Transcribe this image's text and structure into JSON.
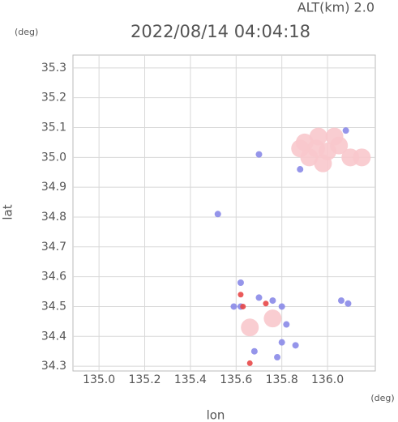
{
  "chart_data": {
    "type": "scatter",
    "title": "2022/08/14 04:04:18",
    "subtitle": "ALT(km) 2.0",
    "y_unit": "(deg)",
    "x_unit": "(deg)",
    "x_label": "lon",
    "y_label": "lat",
    "xlim": [
      134.886,
      136.209
    ],
    "ylim": [
      34.284,
      35.343
    ],
    "xticks": [
      {
        "value": 135.0,
        "label": "135.0"
      },
      135.2,
      135.4,
      135.6,
      135.8,
      {
        "value": 136.0,
        "label": "136.0"
      }
    ],
    "yticks": [
      34.3,
      34.4,
      34.5,
      34.6,
      34.7,
      34.8,
      34.9,
      {
        "value": 35.0,
        "label": "35.0"
      },
      35.1,
      35.2,
      35.3
    ],
    "grid": true,
    "series": [
      {
        "color": "#f8c8cc",
        "x": [
          135.9,
          135.95,
          136.0,
          136.05,
          135.92,
          135.98,
          136.1,
          136.15,
          135.88,
          136.03,
          135.96,
          135.66,
          135.76
        ],
        "values": [
          35.05,
          35.03,
          35.02,
          35.04,
          35.0,
          34.98,
          35.0,
          35.0,
          35.03,
          35.07,
          35.07,
          34.43,
          34.46
        ]
      },
      {
        "color": "#8a8ae8",
        "x": [
          135.52,
          135.7,
          135.62,
          135.62,
          135.7,
          135.76,
          135.8,
          135.82,
          135.8,
          135.86,
          135.68,
          135.78,
          136.06,
          136.09,
          135.59,
          135.88,
          136.08
        ],
        "values": [
          34.81,
          35.01,
          34.58,
          34.5,
          34.53,
          34.52,
          34.5,
          34.44,
          34.38,
          34.37,
          34.35,
          34.33,
          34.52,
          34.51,
          34.5,
          34.96,
          35.09
        ]
      },
      {
        "color": "#e84848",
        "x": [
          135.62,
          135.63,
          135.66,
          135.73
        ],
        "values": [
          34.54,
          34.5,
          34.31,
          34.51
        ]
      }
    ]
  }
}
